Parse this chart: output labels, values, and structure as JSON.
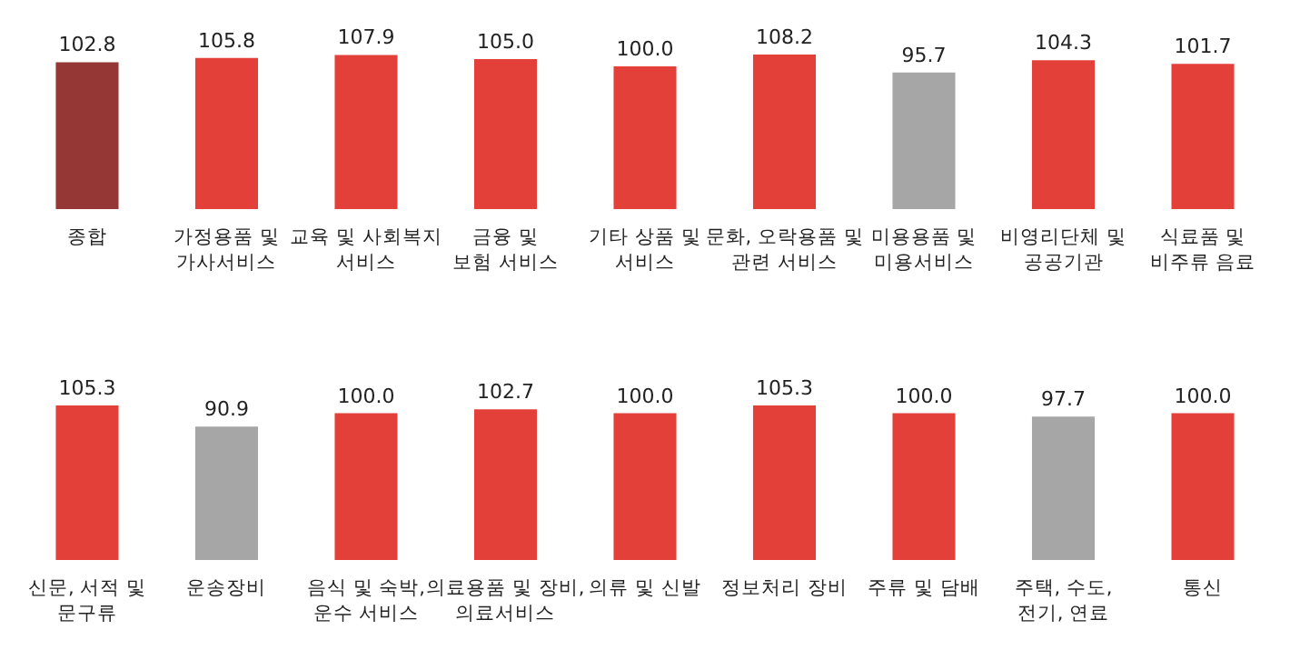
{
  "chart_data": [
    {
      "type": "bar",
      "categories": [
        "종합",
        "가정용품 및\n가사서비스",
        "교육 및 사회복지\n서비스",
        "금융 및\n보험 서비스",
        "기타 상품 및\n서비스",
        "문화, 오락용품 및\n관련 서비스",
        "미용용품 및\n미용서비스",
        "비영리단체 및\n공공기관",
        "식료품 및\n비주류 음료"
      ],
      "values": [
        102.8,
        105.8,
        107.9,
        105.0,
        100.0,
        108.2,
        95.7,
        104.3,
        101.7
      ],
      "colors": [
        "#953735",
        "#e3403a",
        "#e3403a",
        "#e3403a",
        "#e3403a",
        "#e3403a",
        "#a6a6a6",
        "#e3403a",
        "#e3403a"
      ],
      "value_labels": [
        "102.8",
        "105.8",
        "107.9",
        "105.0",
        "100.0",
        "108.2",
        "95.7",
        "104.3",
        "101.7"
      ],
      "tick_labels": "x"
    },
    {
      "type": "bar",
      "categories": [
        "신문, 서적 및\n문구류",
        "운송장비",
        "음식 및 숙박,\n운수 서비스",
        "의료용품 및 장비,\n의료서비스",
        "의류 및 신발",
        "정보처리 장비",
        "주류 및 담배",
        "주택, 수도,\n전기, 연료",
        "통신"
      ],
      "values": [
        105.3,
        90.9,
        100.0,
        102.7,
        100.0,
        105.3,
        100.0,
        97.7,
        100.0
      ],
      "colors": [
        "#e3403a",
        "#a6a6a6",
        "#e3403a",
        "#e3403a",
        "#e3403a",
        "#e3403a",
        "#e3403a",
        "#a6a6a6",
        "#e3403a"
      ],
      "value_labels": [
        "105.3",
        "90.9",
        "100.0",
        "102.7",
        "100.0",
        "105.3",
        "100.0",
        "97.7",
        "100.0"
      ],
      "tick_labels": "x"
    }
  ]
}
